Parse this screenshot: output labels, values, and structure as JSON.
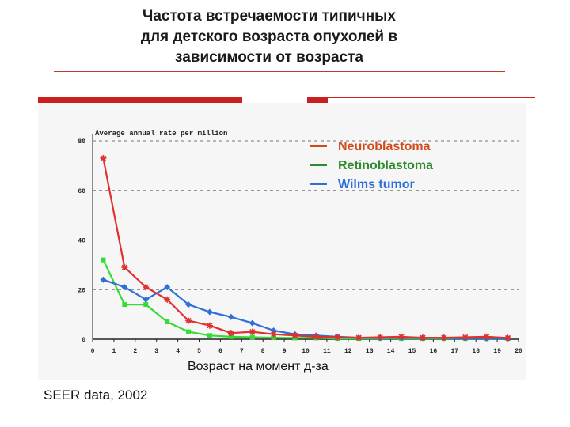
{
  "slide": {
    "title_lines": [
      "Частота встречаемости типичных",
      "для детского возраста опухолей в",
      "зависимости от возраста"
    ],
    "source": "SEER data, 2002"
  },
  "colors": {
    "neuroblastoma": "#e03030",
    "retinoblastoma": "#33dd33",
    "wilms": "#2f6fd8",
    "accent_bar": "#cc1f1f"
  },
  "chart_data": {
    "type": "line",
    "ylabel": "Average annual rate per million",
    "xlabel": "Возраст на момент д-за",
    "x": [
      0.5,
      1.5,
      2.5,
      3.5,
      4.5,
      5.5,
      6.5,
      7.5,
      8.5,
      9.5,
      10.5,
      11.5,
      12.5,
      13.5,
      14.5,
      15.5,
      16.5,
      17.5,
      18.5,
      19.5
    ],
    "xticks": [
      0,
      1,
      2,
      3,
      4,
      5,
      6,
      7,
      8,
      9,
      10,
      11,
      12,
      13,
      14,
      15,
      16,
      17,
      18,
      19,
      20
    ],
    "yticks": [
      0,
      20,
      40,
      60,
      80
    ],
    "xlim": [
      0,
      20
    ],
    "ylim": [
      0,
      80
    ],
    "grid": "horizontal dashed",
    "legend_position": "top-right",
    "series": [
      {
        "name": "Neuroblastoma",
        "color_key": "neuroblastoma",
        "marker": "asterisk",
        "values": [
          73,
          29,
          21,
          16,
          7.5,
          5.5,
          2.5,
          3,
          2,
          1.5,
          1,
          0.8,
          0.6,
          0.8,
          1,
          0.6,
          0.6,
          0.8,
          1,
          0.5
        ]
      },
      {
        "name": "Retinoblastoma",
        "color_key": "retinoblastoma",
        "marker": "square",
        "values": [
          32,
          14,
          14,
          7,
          3,
          1.5,
          1,
          0.8,
          0.6,
          0.5,
          0.5,
          0.3,
          0.3,
          0.3,
          0.3,
          0.3,
          0.3,
          0.3,
          0.3,
          0.3
        ]
      },
      {
        "name": "Wilms tumor",
        "color_key": "wilms",
        "marker": "diamond",
        "values": [
          24,
          21,
          16,
          21,
          14,
          11,
          9,
          6.5,
          3.5,
          2,
          1.5,
          1,
          0.6,
          0.5,
          0.5,
          0.5,
          0.5,
          0.3,
          0.3,
          0.3
        ]
      }
    ]
  }
}
